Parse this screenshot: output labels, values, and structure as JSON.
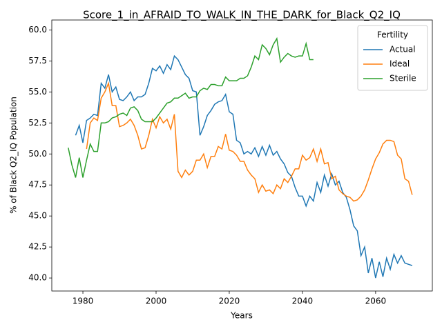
{
  "chart_data": {
    "type": "line",
    "title": "Score_1_in_AFRAID_TO_WALK_IN_THE_DARK_for_Black_Q2_IQ",
    "xlabel": "Years",
    "ylabel": "% of Black Q2_IQ Population",
    "legend_title": "Fertility",
    "legend": "upper right",
    "xlim": [
      1971.5,
      2075.5
    ],
    "xticks": [
      1980,
      2000,
      2020,
      2040,
      2060
    ],
    "ylim": [
      38.95,
      60.8
    ],
    "yticks": [
      {
        "value": 40,
        "label": "40.0"
      },
      {
        "value": 42.5,
        "label": "42.5"
      },
      {
        "value": 45,
        "label": "45.0"
      },
      {
        "value": 47.5,
        "label": "47.5"
      },
      {
        "value": 50,
        "label": "50.0"
      },
      {
        "value": 52.5,
        "label": "52.5"
      },
      {
        "value": 55,
        "label": "55.0"
      },
      {
        "value": 57.5,
        "label": "57.5"
      },
      {
        "value": 60,
        "label": "60.0"
      }
    ],
    "x": [
      1976,
      1977,
      1978,
      1979,
      1980,
      1981,
      1982,
      1983,
      1984,
      1985,
      1986,
      1987,
      1988,
      1989,
      1990,
      1991,
      1992,
      1993,
      1994,
      1995,
      1996,
      1997,
      1998,
      1999,
      2000,
      2001,
      2002,
      2003,
      2004,
      2005,
      2006,
      2007,
      2008,
      2009,
      2010,
      2011,
      2012,
      2013,
      2014,
      2015,
      2016,
      2017,
      2018,
      2019,
      2020,
      2021,
      2022,
      2023,
      2024,
      2025,
      2026,
      2027,
      2028,
      2029,
      2030,
      2031,
      2032,
      2033,
      2034,
      2035,
      2036,
      2037,
      2038,
      2039,
      2040,
      2041,
      2042,
      2043,
      2044,
      2045,
      2046,
      2047,
      2048,
      2049,
      2050,
      2051,
      2052,
      2053,
      2054,
      2055,
      2056,
      2057,
      2058,
      2059,
      2060,
      2061,
      2062,
      2063,
      2064,
      2065,
      2066,
      2067,
      2068,
      2069,
      2070
    ],
    "series": [
      {
        "name": "Actual",
        "color": "#1f77b4",
        "values": [
          null,
          null,
          51.5,
          52.3,
          50.9,
          52.7,
          52.9,
          53.2,
          53.1,
          55.7,
          55.3,
          56.4,
          55.0,
          55.4,
          54.4,
          54.3,
          54.6,
          55.0,
          54.3,
          54.6,
          54.6,
          54.8,
          55.7,
          56.9,
          56.7,
          57.1,
          56.5,
          57.2,
          56.8,
          57.9,
          57.6,
          57.0,
          56.4,
          56.1,
          55.1,
          55.0,
          51.5,
          52.2,
          53.1,
          53.5,
          54.0,
          54.2,
          54.3,
          54.8,
          53.4,
          53.2,
          51.1,
          50.9,
          50.0,
          50.2,
          50.0,
          50.5,
          49.8,
          50.6,
          49.9,
          50.7,
          49.9,
          50.2,
          49.6,
          49.2,
          48.5,
          48.2,
          47.3,
          46.6,
          46.6,
          45.8,
          46.6,
          46.2,
          47.7,
          46.9,
          48.3,
          47.4,
          48.4,
          47.5,
          47.8,
          46.9,
          46.5,
          45.5,
          44.2,
          43.8,
          41.8,
          42.5,
          40.4,
          41.6,
          40.0,
          41.3,
          40.1,
          41.6,
          40.7,
          41.9,
          41.2,
          41.8,
          41.2,
          41.1,
          41.0
        ]
      },
      {
        "name": "Ideal",
        "color": "#ff7f0e",
        "values": [
          null,
          null,
          null,
          null,
          null,
          50.4,
          52.5,
          52.9,
          52.7,
          54.5,
          55.0,
          55.7,
          53.9,
          53.9,
          52.2,
          52.3,
          52.5,
          52.8,
          52.3,
          51.5,
          50.4,
          50.5,
          51.5,
          52.8,
          52.1,
          53.0,
          52.5,
          52.8,
          52.0,
          53.2,
          48.6,
          48.1,
          48.7,
          48.3,
          48.6,
          49.5,
          49.5,
          50.0,
          48.9,
          49.8,
          49.8,
          50.6,
          50.4,
          51.6,
          50.3,
          50.2,
          49.9,
          49.4,
          49.4,
          48.7,
          48.3,
          48.0,
          46.9,
          47.5,
          47.0,
          47.1,
          46.8,
          47.5,
          47.2,
          48.0,
          47.7,
          48.2,
          48.8,
          48.8,
          49.9,
          49.5,
          49.7,
          50.4,
          49.4,
          50.4,
          49.2,
          49.3,
          48.0,
          48.2,
          47.1,
          46.8,
          46.6,
          46.5,
          46.2,
          46.3,
          46.6,
          47.1,
          47.9,
          48.8,
          49.6,
          50.1,
          50.8,
          51.1,
          51.1,
          51.0,
          49.9,
          49.6,
          48.0,
          47.8,
          46.7
        ]
      },
      {
        "name": "Sterile",
        "color": "#2ca02c",
        "values": [
          50.5,
          49.1,
          48.1,
          49.7,
          48.1,
          49.5,
          50.8,
          50.2,
          50.2,
          52.5,
          52.5,
          52.6,
          52.9,
          53.0,
          53.2,
          53.3,
          53.1,
          53.7,
          53.8,
          53.5,
          52.8,
          52.6,
          52.6,
          52.6,
          52.9,
          53.3,
          53.7,
          54.1,
          54.2,
          54.5,
          54.5,
          54.7,
          54.9,
          54.5,
          54.6,
          54.6,
          55.1,
          55.3,
          55.2,
          55.6,
          55.6,
          55.5,
          55.5,
          56.2,
          55.9,
          55.9,
          55.9,
          56.1,
          56.1,
          56.3,
          57.0,
          57.9,
          57.6,
          58.8,
          58.5,
          58.0,
          58.8,
          59.3,
          57.4,
          57.8,
          58.1,
          57.9,
          57.8,
          57.9,
          57.9,
          58.9,
          57.6,
          57.6,
          null,
          null,
          null,
          null,
          null,
          null,
          null,
          null,
          null,
          null,
          null,
          null,
          null,
          null,
          null,
          null,
          null,
          null,
          null,
          null,
          null,
          null,
          null,
          null,
          null,
          null,
          null
        ]
      }
    ]
  }
}
